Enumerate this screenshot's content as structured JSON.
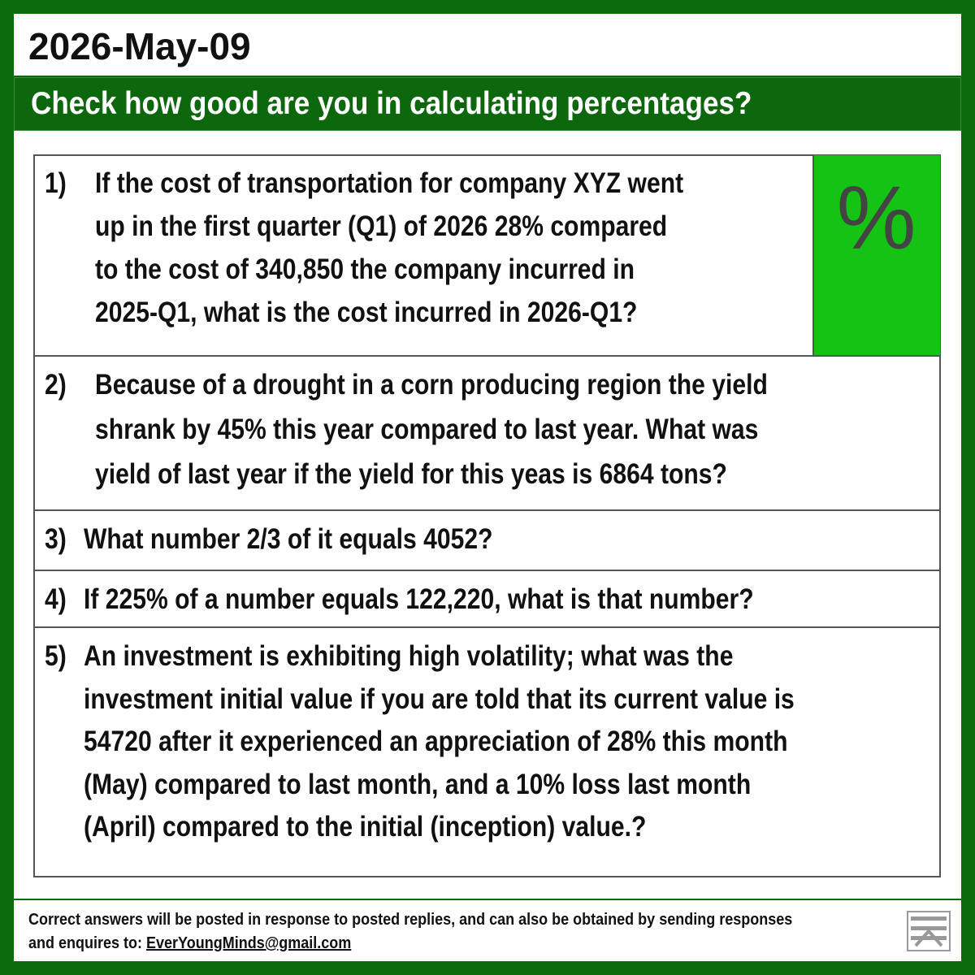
{
  "header": {
    "date": "2026-May-09",
    "title": "Check how good are you in calculating percentages?"
  },
  "badge": "%",
  "questions": [
    {
      "number": "1)",
      "lines": [
        "If the cost of transportation for company XYZ went",
        "up in the first quarter (Q1) of 2026 28% compared",
        "to the cost of 340,850 the company incurred in",
        "2025-Q1, what is the cost incurred in 2026-Q1?"
      ]
    },
    {
      "number": "2)",
      "lines": [
        "Because of a drought in a corn producing region the yield",
        "shrank by 45% this year compared to last year. What was",
        "yield of last year if the yield for this yeas is 6864 tons?"
      ]
    },
    {
      "number": "3)",
      "lines": [
        "What number 2/3 of it equals 4052?"
      ]
    },
    {
      "number": "4)",
      "lines": [
        "If 225% of a number equals 122,220, what is that number?"
      ]
    },
    {
      "number": "5)",
      "lines": [
        "An investment is exhibiting high volatility; what was the",
        "investment initial value if you are told that its current value is",
        "54720 after it experienced an appreciation of 28% this month",
        "(May) compared to last month, and a 10% loss last month",
        "(April) compared to the initial (inception) value.?"
      ]
    }
  ],
  "footer": {
    "line1": "Correct answers will be posted in response to posted replies, and can also be obtained by sending responses",
    "line2_prefix": "and enquires to:",
    "email": "EverYoungMinds@gmail.com"
  }
}
